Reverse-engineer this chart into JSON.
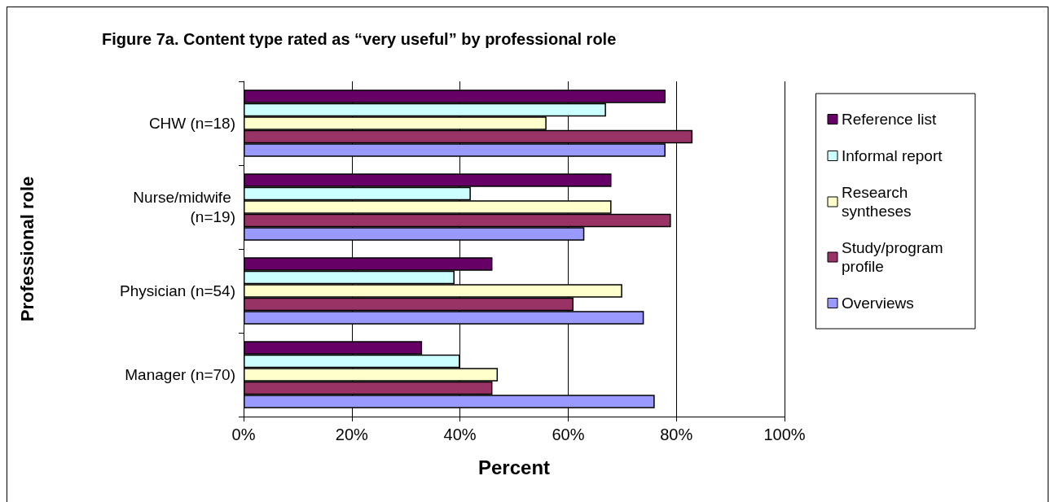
{
  "chart_data": {
    "type": "bar",
    "orientation": "horizontal",
    "title": "Figure 7a. Content type rated as “very useful” by professional role",
    "xlabel": "Percent",
    "ylabel": "Professional role",
    "categories": [
      "CHW (n=18)",
      "Nurse/midwife (n=19)",
      "Physician (n=54)",
      "Manager (n=70)"
    ],
    "series": [
      {
        "name": "Reference list",
        "color": "#660066",
        "values": [
          78,
          68,
          46,
          33
        ]
      },
      {
        "name": "Informal report",
        "color": "#ccffff",
        "values": [
          67,
          42,
          39,
          40
        ]
      },
      {
        "name": "Research syntheses",
        "color": "#ffffcc",
        "values": [
          56,
          68,
          70,
          47
        ]
      },
      {
        "name": "Study/program profile",
        "color": "#993366",
        "values": [
          83,
          79,
          61,
          46
        ]
      },
      {
        "name": "Overviews",
        "color": "#9999ff",
        "values": [
          78,
          63,
          74,
          76
        ]
      }
    ],
    "xlim": [
      0,
      100
    ],
    "xticks": [
      {
        "value": 0,
        "label": "0%"
      },
      {
        "value": 20,
        "label": "20%"
      },
      {
        "value": 40,
        "label": "40%"
      },
      {
        "value": 60,
        "label": "60%"
      },
      {
        "value": 80,
        "label": "80%"
      },
      {
        "value": 100,
        "label": "100%"
      }
    ],
    "grid": "x",
    "legend": "right"
  }
}
